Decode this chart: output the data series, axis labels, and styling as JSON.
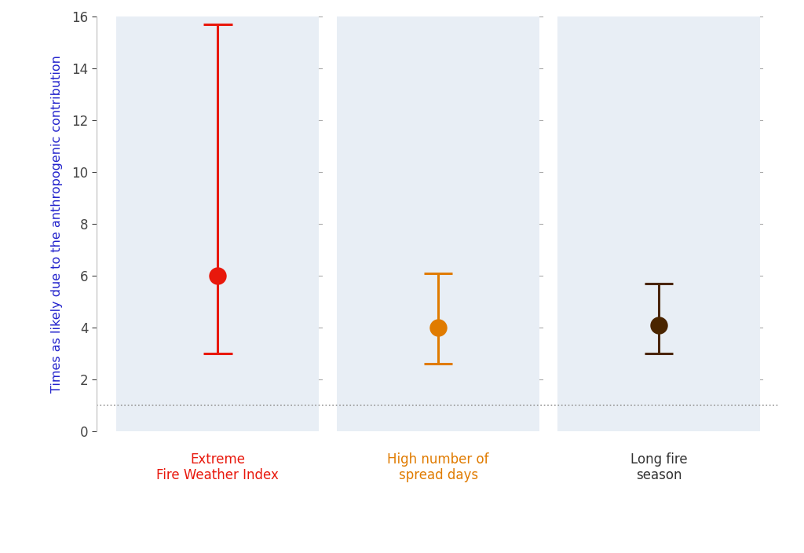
{
  "categories": [
    "Extreme\nFire Weather Index",
    "High number of\nspread days",
    "Long fire\nseason"
  ],
  "x_positions": [
    1,
    2,
    3
  ],
  "values": [
    6,
    4,
    4.1
  ],
  "lower": [
    3,
    2.6,
    3
  ],
  "upper": [
    15.7,
    6.1,
    5.7
  ],
  "colors": [
    "#e8180c",
    "#e07b00",
    "#4a2500"
  ],
  "label_colors": [
    "#e8180c",
    "#e07b00",
    "#333333"
  ],
  "ylabel": "Times as likely due to the anthropogenic contribution",
  "ylabel_color": "#2222cc",
  "ylim": [
    0,
    16
  ],
  "yticks": [
    0,
    2,
    4,
    6,
    8,
    10,
    12,
    14,
    16
  ],
  "reference_line": 1.0,
  "background_color": "#ffffff",
  "panel_bg_color": "#e8eef5",
  "dot_size": 260,
  "linewidth": 2.2,
  "figsize": [
    10.24,
    7.04
  ],
  "dpi": 100
}
